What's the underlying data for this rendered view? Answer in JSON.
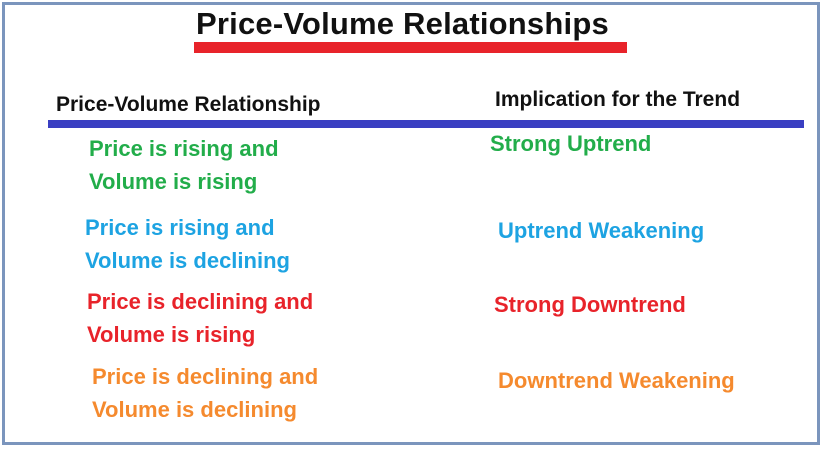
{
  "title": "Price-Volume Relationships",
  "headers": {
    "relationship": "Price-Volume Relationship",
    "implication": "Implication for the Trend"
  },
  "colors": {
    "title_underline": "#e8232a",
    "divider": "#3a3fc2",
    "frame": "#7b95bd",
    "green": "#22ad4a",
    "blue": "#1da3e2",
    "red": "#e8232a",
    "orange": "#f58a2e"
  },
  "rows": [
    {
      "relationship_line1": "Price is rising and",
      "relationship_line2": "Volume is rising",
      "implication": "Strong Uptrend"
    },
    {
      "relationship_line1": "Price is rising and",
      "relationship_line2": "Volume is declining",
      "implication": "Uptrend Weakening"
    },
    {
      "relationship_line1": "Price is declining and",
      "relationship_line2": "Volume is rising",
      "implication": "Strong Downtrend"
    },
    {
      "relationship_line1": "Price is declining and",
      "relationship_line2": "Volume is declining",
      "implication": "Downtrend Weakening"
    }
  ]
}
